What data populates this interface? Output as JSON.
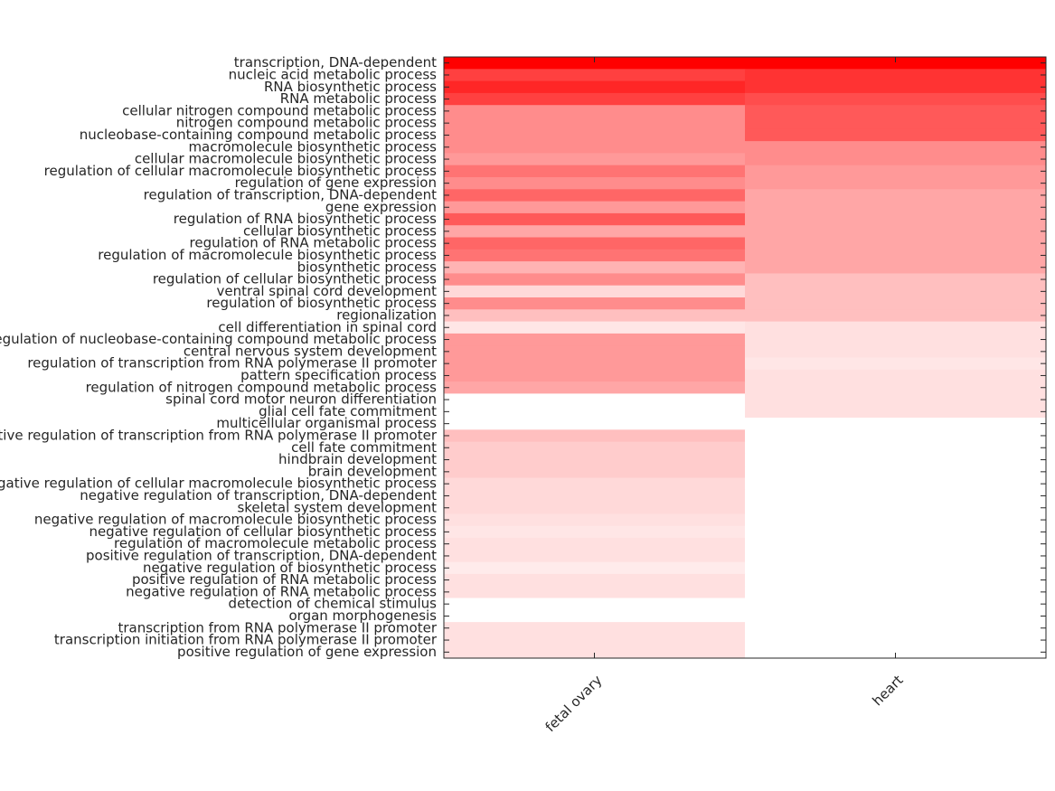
{
  "chart_data": {
    "type": "heatmap",
    "x_categories": [
      "fetal ovary",
      "heart"
    ],
    "y_categories": [
      "transcription, DNA-dependent",
      "nucleic acid metabolic process",
      "RNA biosynthetic process",
      "RNA metabolic process",
      "cellular nitrogen compound metabolic process",
      "nitrogen compound metabolic process",
      "nucleobase-containing compound metabolic process",
      "macromolecule biosynthetic process",
      "cellular macromolecule biosynthetic process",
      "regulation of cellular macromolecule biosynthetic process",
      "regulation of gene expression",
      "regulation of transcription, DNA-dependent",
      "gene expression",
      "regulation of RNA biosynthetic process",
      "cellular biosynthetic process",
      "regulation of RNA metabolic process",
      "regulation of macromolecule biosynthetic process",
      "biosynthetic process",
      "regulation of cellular biosynthetic process",
      "ventral spinal cord development",
      "regulation of biosynthetic process",
      "regionalization",
      "cell differentiation in spinal cord",
      "regulation of nucleobase-containing compound metabolic process",
      "central nervous system development",
      "regulation of transcription from RNA polymerase II promoter",
      "pattern specification process",
      "regulation of nitrogen compound metabolic process",
      "spinal cord motor neuron differentiation",
      "glial cell fate commitment",
      "multicellular organismal process",
      "positive regulation of transcription from RNA polymerase II promoter",
      "cell fate commitment",
      "hindbrain development",
      "brain development",
      "negative regulation of cellular macromolecule biosynthetic process",
      "negative regulation of transcription, DNA-dependent",
      "skeletal system development",
      "negative regulation of macromolecule biosynthetic process",
      "negative regulation of cellular biosynthetic process",
      "regulation of macromolecule metabolic process",
      "positive regulation of transcription, DNA-dependent",
      "negative regulation of biosynthetic process",
      "positive regulation of RNA metabolic process",
      "negative regulation of RNA metabolic process",
      "detection of chemical stimulus",
      "organ morphogenesis",
      "transcription from RNA polymerase II promoter",
      "transcription initiation from RNA polymerase II promoter",
      "positive regulation of gene expression"
    ],
    "values": [
      [
        1.0,
        1.0
      ],
      [
        0.75,
        0.8
      ],
      [
        0.85,
        0.8
      ],
      [
        0.75,
        0.7
      ],
      [
        0.45,
        0.65
      ],
      [
        0.45,
        0.65
      ],
      [
        0.45,
        0.65
      ],
      [
        0.45,
        0.45
      ],
      [
        0.4,
        0.45
      ],
      [
        0.55,
        0.4
      ],
      [
        0.45,
        0.4
      ],
      [
        0.6,
        0.35
      ],
      [
        0.4,
        0.35
      ],
      [
        0.65,
        0.35
      ],
      [
        0.35,
        0.35
      ],
      [
        0.6,
        0.35
      ],
      [
        0.55,
        0.35
      ],
      [
        0.3,
        0.35
      ],
      [
        0.45,
        0.25
      ],
      [
        0.15,
        0.25
      ],
      [
        0.45,
        0.25
      ],
      [
        0.25,
        0.25
      ],
      [
        0.1,
        0.12
      ],
      [
        0.4,
        0.12
      ],
      [
        0.4,
        0.12
      ],
      [
        0.4,
        0.1
      ],
      [
        0.4,
        0.12
      ],
      [
        0.35,
        0.12
      ],
      [
        0,
        0.12
      ],
      [
        0,
        0.12
      ],
      [
        0,
        0
      ],
      [
        0.25,
        0
      ],
      [
        0.2,
        0
      ],
      [
        0.2,
        0
      ],
      [
        0.2,
        0
      ],
      [
        0.15,
        0
      ],
      [
        0.15,
        0
      ],
      [
        0.15,
        0
      ],
      [
        0.12,
        0
      ],
      [
        0.1,
        0
      ],
      [
        0.12,
        0
      ],
      [
        0.12,
        0
      ],
      [
        0.08,
        0
      ],
      [
        0.12,
        0
      ],
      [
        0.12,
        0
      ],
      [
        0,
        0
      ],
      [
        0,
        0
      ],
      [
        0.12,
        0
      ],
      [
        0.12,
        0
      ],
      [
        0.12,
        0
      ]
    ],
    "zlim": [
      0,
      1
    ],
    "colormap": [
      "#ffffff",
      "#ff0000"
    ]
  }
}
